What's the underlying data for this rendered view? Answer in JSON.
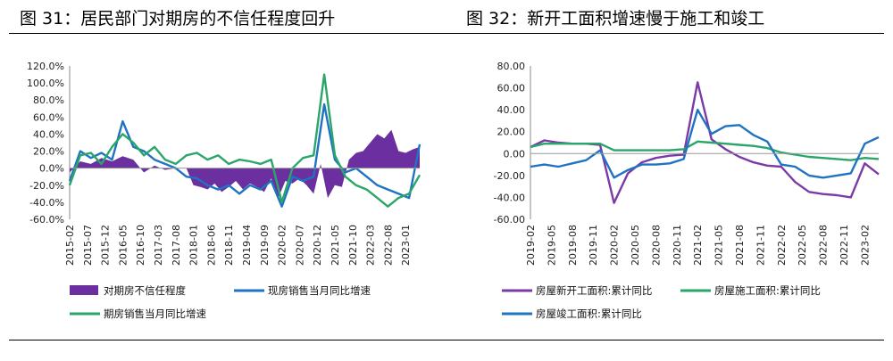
{
  "left": {
    "title": "图 31：居民部门对期房的不信任程度回升",
    "chart_data": {
      "type": "line",
      "y_ticks": [
        "120.0%",
        "100.0%",
        "80.0%",
        "60.0%",
        "40.0%",
        "20.0%",
        "0.0%",
        "-20.0%",
        "-40.0%",
        "-60.0%"
      ],
      "ylim": [
        -60,
        120
      ],
      "x_ticks": [
        "2015-02",
        "2015-07",
        "2015-12",
        "2016-05",
        "2016-10",
        "2017-03",
        "2017-08",
        "2018-01",
        "2018-06",
        "2018-11",
        "2019-04",
        "2019-09",
        "2020-02",
        "2020-07",
        "2020-12",
        "2021-05",
        "2021-10",
        "2022-03",
        "2022-08",
        "2023-01"
      ],
      "x_range": [
        "2015-02",
        "2023-05"
      ],
      "series": [
        {
          "name": "对期房不信任程度",
          "kind": "area",
          "color": "#6b2fa0",
          "points": [
            [
              "2015-02",
              -5
            ],
            [
              "2015-05",
              8
            ],
            [
              "2015-08",
              5
            ],
            [
              "2015-11",
              12
            ],
            [
              "2016-02",
              8
            ],
            [
              "2016-05",
              14
            ],
            [
              "2016-08",
              10
            ],
            [
              "2016-11",
              -5
            ],
            [
              "2017-02",
              3
            ],
            [
              "2017-05",
              -2
            ],
            [
              "2017-08",
              0
            ],
            [
              "2017-11",
              0
            ],
            [
              "2018-01",
              -20
            ],
            [
              "2018-03",
              -22
            ],
            [
              "2018-05",
              -25
            ],
            [
              "2018-07",
              -18
            ],
            [
              "2018-09",
              -28
            ],
            [
              "2018-11",
              -22
            ],
            [
              "2019-01",
              -15
            ],
            [
              "2019-03",
              -25
            ],
            [
              "2019-05",
              -18
            ],
            [
              "2019-07",
              -22
            ],
            [
              "2019-09",
              -28
            ],
            [
              "2019-11",
              -12
            ],
            [
              "2020-01",
              -35
            ],
            [
              "2020-03",
              -15
            ],
            [
              "2020-05",
              -18
            ],
            [
              "2020-07",
              -12
            ],
            [
              "2020-09",
              -20
            ],
            [
              "2020-11",
              -30
            ],
            [
              "2021-01",
              5
            ],
            [
              "2021-03",
              -35
            ],
            [
              "2021-05",
              -20
            ],
            [
              "2021-07",
              -22
            ],
            [
              "2021-09",
              10
            ],
            [
              "2021-11",
              18
            ],
            [
              "2022-01",
              20
            ],
            [
              "2022-03",
              30
            ],
            [
              "2022-05",
              40
            ],
            [
              "2022-07",
              35
            ],
            [
              "2022-09",
              45
            ],
            [
              "2022-11",
              20
            ],
            [
              "2023-01",
              18
            ],
            [
              "2023-03",
              22
            ],
            [
              "2023-05",
              25
            ]
          ]
        },
        {
          "name": "现房销售当月同比增速",
          "kind": "line",
          "color": "#1f73c2",
          "points": [
            [
              "2015-02",
              -15
            ],
            [
              "2015-05",
              20
            ],
            [
              "2015-08",
              12
            ],
            [
              "2015-11",
              18
            ],
            [
              "2016-02",
              10
            ],
            [
              "2016-05",
              55
            ],
            [
              "2016-08",
              25
            ],
            [
              "2016-11",
              20
            ],
            [
              "2017-02",
              10
            ],
            [
              "2017-05",
              5
            ],
            [
              "2017-08",
              0
            ],
            [
              "2017-11",
              -10
            ],
            [
              "2018-02",
              -12
            ],
            [
              "2018-05",
              -20
            ],
            [
              "2018-08",
              -25
            ],
            [
              "2018-11",
              -20
            ],
            [
              "2019-02",
              -30
            ],
            [
              "2019-05",
              -20
            ],
            [
              "2019-08",
              -25
            ],
            [
              "2019-11",
              -15
            ],
            [
              "2020-02",
              -45
            ],
            [
              "2020-05",
              -10
            ],
            [
              "2020-08",
              -15
            ],
            [
              "2020-11",
              -10
            ],
            [
              "2021-02",
              75
            ],
            [
              "2021-05",
              10
            ],
            [
              "2021-08",
              -5
            ],
            [
              "2021-11",
              0
            ],
            [
              "2022-02",
              -10
            ],
            [
              "2022-05",
              -20
            ],
            [
              "2022-08",
              -25
            ],
            [
              "2022-11",
              -30
            ],
            [
              "2023-02",
              -35
            ],
            [
              "2023-05",
              28
            ]
          ]
        },
        {
          "name": "期房销售当月同比增速",
          "kind": "line",
          "color": "#2aa66a",
          "points": [
            [
              "2015-02",
              -20
            ],
            [
              "2015-05",
              15
            ],
            [
              "2015-08",
              18
            ],
            [
              "2015-11",
              5
            ],
            [
              "2016-02",
              25
            ],
            [
              "2016-05",
              40
            ],
            [
              "2016-08",
              30
            ],
            [
              "2016-11",
              15
            ],
            [
              "2017-02",
              25
            ],
            [
              "2017-05",
              10
            ],
            [
              "2017-08",
              5
            ],
            [
              "2017-11",
              15
            ],
            [
              "2018-02",
              18
            ],
            [
              "2018-05",
              10
            ],
            [
              "2018-08",
              15
            ],
            [
              "2018-11",
              5
            ],
            [
              "2019-02",
              10
            ],
            [
              "2019-05",
              8
            ],
            [
              "2019-08",
              5
            ],
            [
              "2019-11",
              10
            ],
            [
              "2020-02",
              -40
            ],
            [
              "2020-05",
              0
            ],
            [
              "2020-08",
              12
            ],
            [
              "2020-11",
              15
            ],
            [
              "2021-02",
              110
            ],
            [
              "2021-05",
              15
            ],
            [
              "2021-08",
              -10
            ],
            [
              "2021-11",
              -20
            ],
            [
              "2022-02",
              -25
            ],
            [
              "2022-05",
              -35
            ],
            [
              "2022-08",
              -45
            ],
            [
              "2022-11",
              -35
            ],
            [
              "2023-02",
              -30
            ],
            [
              "2023-05",
              -8
            ]
          ]
        }
      ]
    }
  },
  "right": {
    "title": "图 32：新开工面积增速慢于施工和竣工",
    "chart_data": {
      "type": "line",
      "y_ticks": [
        "80.00",
        "60.00",
        "40.00",
        "20.00",
        "0.00",
        "-20.00",
        "-40.00",
        "-60.00"
      ],
      "ylim": [
        -60,
        80
      ],
      "x_ticks": [
        "2019-02",
        "2019-05",
        "2019-08",
        "2019-11",
        "2020-02",
        "2020-05",
        "2020-08",
        "2020-11",
        "2021-02",
        "2021-05",
        "2021-08",
        "2021-11",
        "2022-02",
        "2022-05",
        "2022-08",
        "2022-11",
        "2023-02"
      ],
      "x_range": [
        "2019-02",
        "2023-04"
      ],
      "series": [
        {
          "name": "房屋新开工面积:累计同比",
          "color": "#7b3aa6",
          "points": [
            [
              "2019-02",
              6
            ],
            [
              "2019-04",
              12
            ],
            [
              "2019-06",
              10
            ],
            [
              "2019-08",
              9
            ],
            [
              "2019-10",
              9
            ],
            [
              "2019-12",
              8
            ],
            [
              "2020-02",
              -45
            ],
            [
              "2020-04",
              -18
            ],
            [
              "2020-06",
              -8
            ],
            [
              "2020-08",
              -4
            ],
            [
              "2020-10",
              -2
            ],
            [
              "2020-12",
              -1
            ],
            [
              "2021-02",
              65
            ],
            [
              "2021-04",
              13
            ],
            [
              "2021-06",
              4
            ],
            [
              "2021-08",
              -3
            ],
            [
              "2021-10",
              -8
            ],
            [
              "2021-12",
              -11
            ],
            [
              "2022-02",
              -12
            ],
            [
              "2022-04",
              -26
            ],
            [
              "2022-06",
              -35
            ],
            [
              "2022-08",
              -37
            ],
            [
              "2022-10",
              -38
            ],
            [
              "2022-12",
              -40
            ],
            [
              "2023-02",
              -9
            ],
            [
              "2023-04",
              -19
            ]
          ]
        },
        {
          "name": "房屋施工面积:累计同比",
          "color": "#2aa66a",
          "points": [
            [
              "2019-02",
              6
            ],
            [
              "2019-04",
              9
            ],
            [
              "2019-06",
              9
            ],
            [
              "2019-08",
              9
            ],
            [
              "2019-10",
              9
            ],
            [
              "2019-12",
              9
            ],
            [
              "2020-02",
              3
            ],
            [
              "2020-04",
              3
            ],
            [
              "2020-06",
              3
            ],
            [
              "2020-08",
              3
            ],
            [
              "2020-10",
              3
            ],
            [
              "2020-12",
              4
            ],
            [
              "2021-02",
              11
            ],
            [
              "2021-04",
              10
            ],
            [
              "2021-06",
              9
            ],
            [
              "2021-08",
              8
            ],
            [
              "2021-10",
              7
            ],
            [
              "2021-12",
              5
            ],
            [
              "2022-02",
              1
            ],
            [
              "2022-04",
              -1
            ],
            [
              "2022-06",
              -3
            ],
            [
              "2022-08",
              -4
            ],
            [
              "2022-10",
              -5
            ],
            [
              "2022-12",
              -6
            ],
            [
              "2023-02",
              -4
            ],
            [
              "2023-04",
              -5
            ]
          ]
        },
        {
          "name": "房屋竣工面积:累计同比",
          "color": "#1f73c2",
          "points": [
            [
              "2019-02",
              -12
            ],
            [
              "2019-04",
              -10
            ],
            [
              "2019-06",
              -12
            ],
            [
              "2019-08",
              -9
            ],
            [
              "2019-10",
              -6
            ],
            [
              "2019-12",
              3
            ],
            [
              "2020-02",
              -22
            ],
            [
              "2020-04",
              -15
            ],
            [
              "2020-06",
              -10
            ],
            [
              "2020-08",
              -10
            ],
            [
              "2020-10",
              -9
            ],
            [
              "2020-12",
              -5
            ],
            [
              "2021-02",
              40
            ],
            [
              "2021-04",
              18
            ],
            [
              "2021-06",
              25
            ],
            [
              "2021-08",
              26
            ],
            [
              "2021-10",
              17
            ],
            [
              "2021-12",
              11
            ],
            [
              "2022-02",
              -10
            ],
            [
              "2022-04",
              -12
            ],
            [
              "2022-06",
              -20
            ],
            [
              "2022-08",
              -22
            ],
            [
              "2022-10",
              -20
            ],
            [
              "2022-12",
              -18
            ],
            [
              "2023-02",
              9
            ],
            [
              "2023-04",
              15
            ]
          ]
        }
      ]
    }
  }
}
